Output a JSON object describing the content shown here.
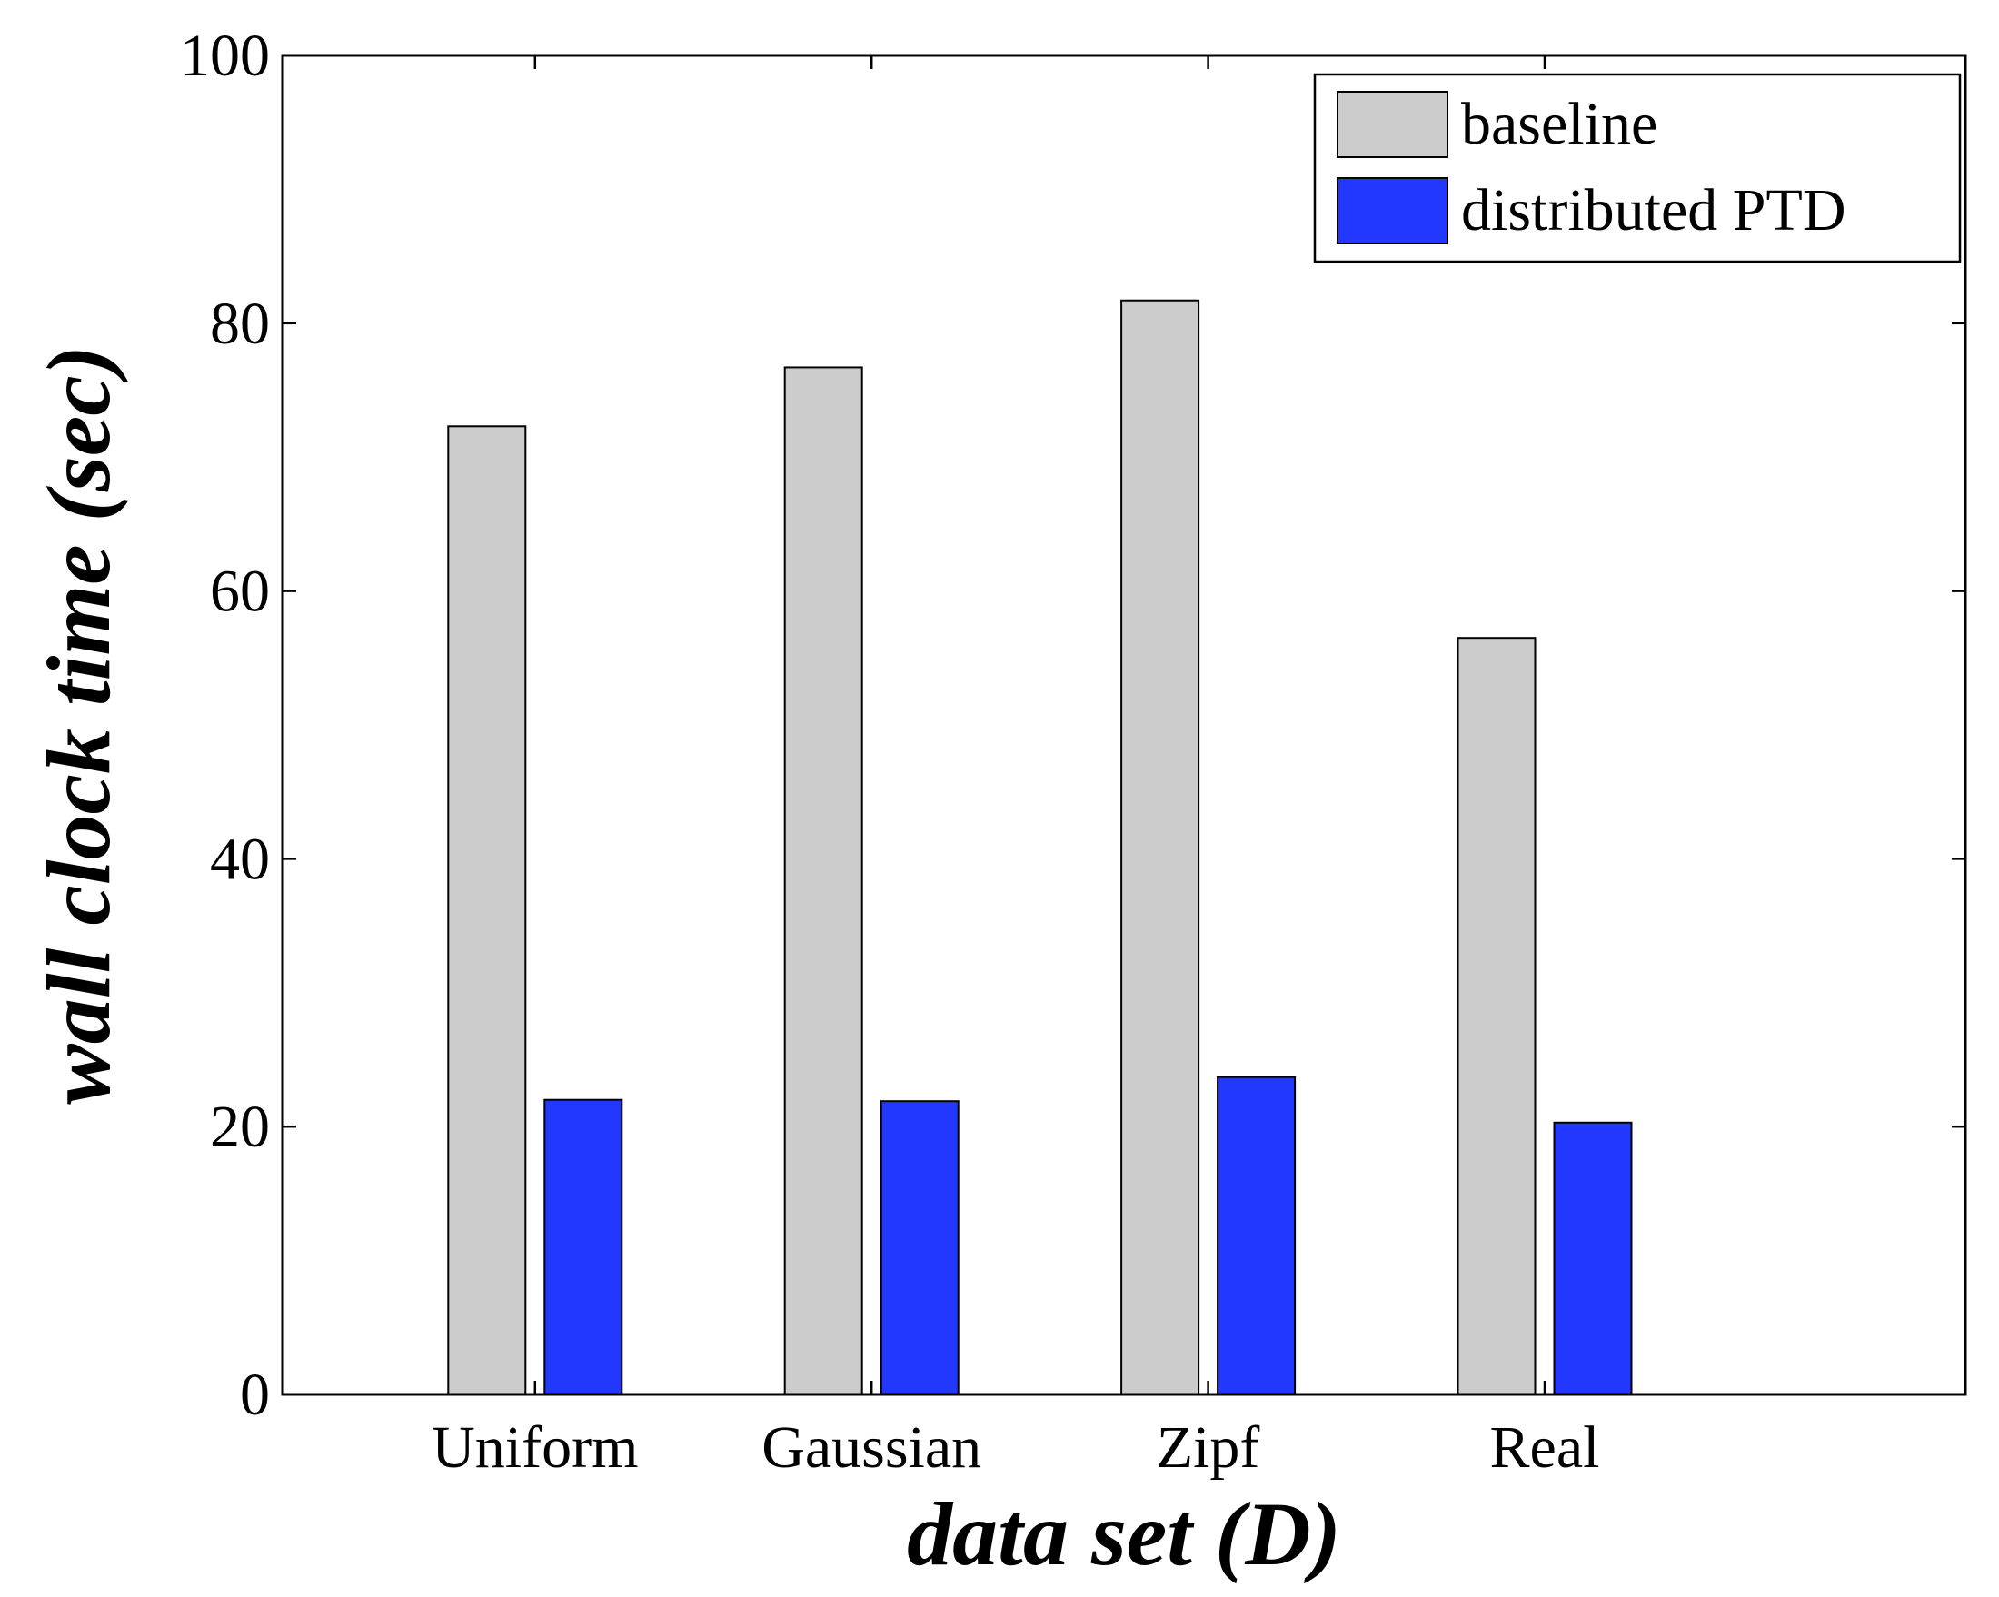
{
  "chart_data": {
    "type": "bar",
    "title": "",
    "xlabel": "data set (D)",
    "ylabel": "wall clock time (sec)",
    "categories": [
      "Uniform",
      "Gaussian",
      "Zipf",
      "Real"
    ],
    "series": [
      {
        "name": "baseline",
        "color": "#cccccc",
        "values": [
          72.3,
          76.7,
          81.7,
          56.5
        ]
      },
      {
        "name": "distributed PTD",
        "color": "#2238ff",
        "values": [
          22.0,
          21.9,
          23.7,
          20.3
        ]
      }
    ],
    "ylim": [
      0,
      100
    ],
    "yticks": [
      0,
      20,
      40,
      60,
      80,
      100
    ],
    "xlim": [
      0.25,
      5.25
    ],
    "category_positions": [
      1,
      2,
      3,
      4
    ],
    "grid": false,
    "legend_position": "top-right"
  }
}
